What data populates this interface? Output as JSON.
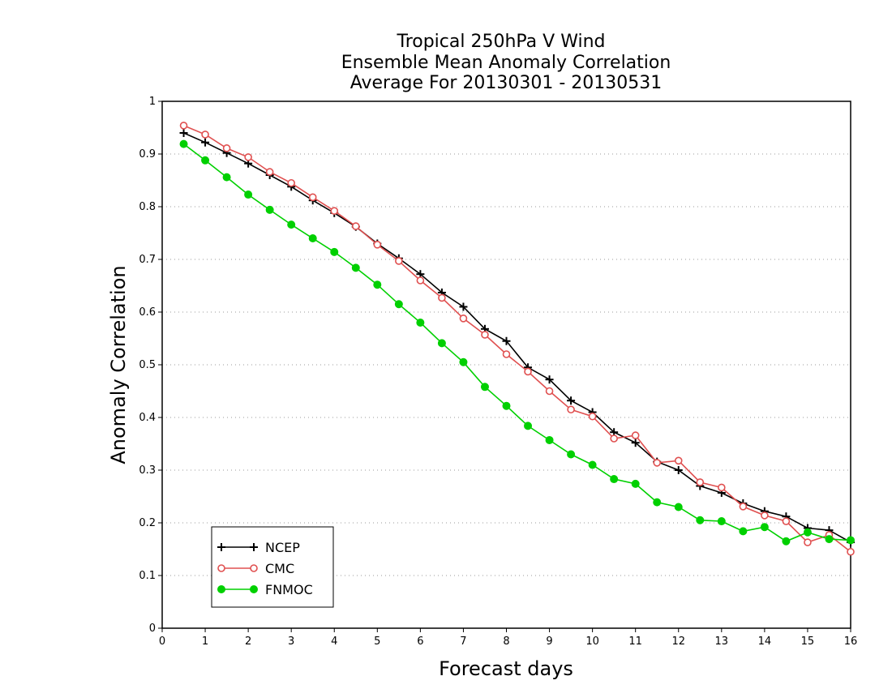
{
  "chart_data": {
    "type": "line",
    "title": [
      "Tropical 250hPa V Wind",
      "Ensemble Mean Anomaly Correlation",
      "Average For 20130301 - 20130531"
    ],
    "xlabel": "Forecast days",
    "ylabel": "Anomaly Correlation",
    "xlim": [
      0,
      16
    ],
    "ylim": [
      0,
      1
    ],
    "xticks": [
      0,
      1,
      2,
      3,
      4,
      5,
      6,
      7,
      8,
      9,
      10,
      11,
      12,
      13,
      14,
      15,
      16
    ],
    "yticks": [
      0,
      0.1,
      0.2,
      0.3,
      0.4,
      0.5,
      0.6,
      0.7,
      0.8,
      0.9,
      1
    ],
    "grid": "horizontal-dotted",
    "legend_position": "bottom-left",
    "x": [
      0.5,
      1,
      1.5,
      2,
      2.5,
      3,
      3.5,
      4,
      4.5,
      5,
      5.5,
      6,
      6.5,
      7,
      7.5,
      8,
      8.5,
      9,
      9.5,
      10,
      10.5,
      11,
      11.5,
      12,
      12.5,
      13,
      13.5,
      14,
      14.5,
      15,
      15.5,
      16
    ],
    "series": [
      {
        "name": "NCEP",
        "color": "#000000",
        "marker": "plus",
        "values": [
          0.94,
          0.922,
          0.902,
          0.882,
          0.86,
          0.838,
          0.812,
          0.788,
          0.762,
          0.73,
          0.702,
          0.672,
          0.637,
          0.61,
          0.568,
          0.545,
          0.495,
          0.472,
          0.432,
          0.41,
          0.372,
          0.352,
          0.316,
          0.3,
          0.27,
          0.257,
          0.237,
          0.222,
          0.212,
          0.19,
          0.186,
          0.163
        ]
      },
      {
        "name": "CMC",
        "color": "#e05050",
        "marker": "open-circle",
        "values": [
          0.954,
          0.937,
          0.911,
          0.894,
          0.866,
          0.845,
          0.818,
          0.792,
          0.763,
          0.728,
          0.697,
          0.66,
          0.627,
          0.588,
          0.557,
          0.52,
          0.487,
          0.45,
          0.415,
          0.402,
          0.36,
          0.366,
          0.314,
          0.318,
          0.277,
          0.267,
          0.231,
          0.214,
          0.203,
          0.163,
          0.177,
          0.145
        ]
      },
      {
        "name": "FNMOC",
        "color": "#00d000",
        "marker": "filled-circle",
        "values": [
          0.919,
          0.888,
          0.856,
          0.823,
          0.794,
          0.766,
          0.74,
          0.714,
          0.684,
          0.652,
          0.615,
          0.58,
          0.541,
          0.505,
          0.458,
          0.422,
          0.384,
          0.357,
          0.33,
          0.31,
          0.283,
          0.274,
          0.239,
          0.23,
          0.205,
          0.203,
          0.184,
          0.192,
          0.165,
          0.182,
          0.169,
          0.167
        ]
      }
    ]
  }
}
